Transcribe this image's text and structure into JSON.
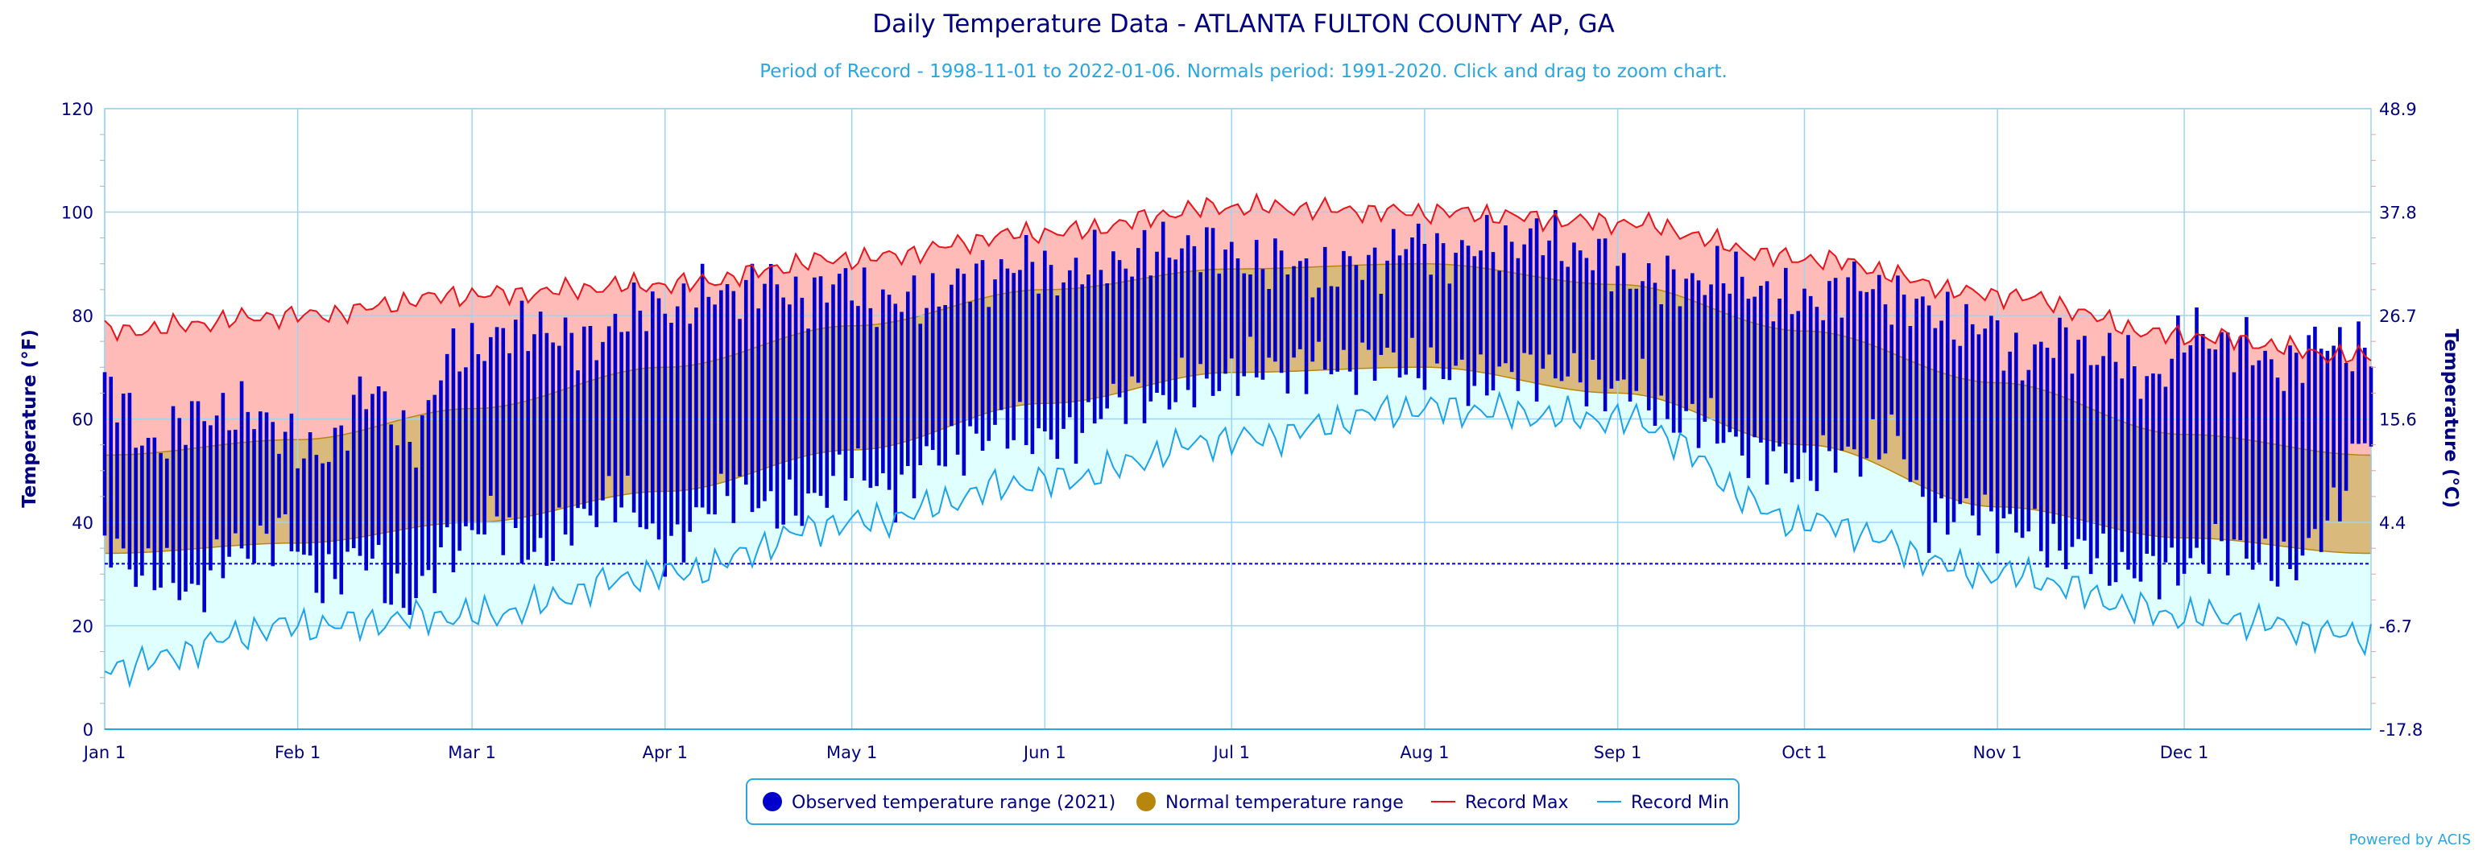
{
  "chart_data": {
    "type": "line",
    "title": "Daily Temperature Data - ATLANTA FULTON COUNTY AP, GA",
    "subtitle": "Period of Record - 1998-11-01 to 2022-01-06. Normals period: 1991-2020. Click and drag to zoom chart.",
    "ylabel": "Temperature (°F)",
    "ylabel_right": "Temperature (°C)",
    "ylim": [
      0,
      120
    ],
    "y_ticks": [
      0,
      20,
      40,
      60,
      80,
      100,
      120
    ],
    "y_ticks_right": [
      "-17.8",
      "-6.7",
      "4.4",
      "15.6",
      "26.7",
      "37.8",
      "48.9"
    ],
    "freezing_line_f": 32,
    "x_ticks": [
      {
        "label": "Jan 1",
        "day": 0
      },
      {
        "label": "Feb 1",
        "day": 31
      },
      {
        "label": "Mar 1",
        "day": 59
      },
      {
        "label": "Apr 1",
        "day": 90
      },
      {
        "label": "May 1",
        "day": 120
      },
      {
        "label": "Jun 1",
        "day": 151
      },
      {
        "label": "Jul 1",
        "day": 181
      },
      {
        "label": "Aug 1",
        "day": 212
      },
      {
        "label": "Sep 1",
        "day": 243
      },
      {
        "label": "Oct 1",
        "day": 273
      },
      {
        "label": "Nov 1",
        "day": 304
      },
      {
        "label": "Dec 1",
        "day": 334
      }
    ],
    "days_in_year": 365,
    "monthly_anchor_days": [
      0,
      31,
      59,
      90,
      120,
      151,
      181,
      212,
      243,
      273,
      304,
      334,
      364
    ],
    "normal_max_monthly": [
      53,
      56,
      62,
      70,
      78,
      85,
      89,
      90,
      86,
      77,
      67,
      57,
      53
    ],
    "normal_min_monthly": [
      34,
      36,
      40,
      46,
      54,
      63,
      69,
      70,
      65,
      55,
      43,
      37,
      34
    ],
    "record_max_monthly": [
      77,
      80,
      84,
      86,
      91,
      96,
      101,
      100,
      98,
      91,
      84,
      76,
      72
    ],
    "record_min_monthly": [
      12,
      20,
      22,
      30,
      40,
      48,
      56,
      62,
      60,
      40,
      30,
      22,
      18
    ],
    "observed_weekly": [
      {
        "day": 0,
        "hi": 67,
        "lo": 36
      },
      {
        "day": 7,
        "hi": 55,
        "lo": 30
      },
      {
        "day": 14,
        "hi": 60,
        "lo": 27
      },
      {
        "day": 21,
        "hi": 62,
        "lo": 34
      },
      {
        "day": 28,
        "hi": 58,
        "lo": 38
      },
      {
        "day": 35,
        "hi": 52,
        "lo": 29
      },
      {
        "day": 42,
        "hi": 66,
        "lo": 33
      },
      {
        "day": 49,
        "hi": 56,
        "lo": 24
      },
      {
        "day": 56,
        "hi": 72,
        "lo": 36
      },
      {
        "day": 63,
        "hi": 76,
        "lo": 40
      },
      {
        "day": 70,
        "hi": 78,
        "lo": 33
      },
      {
        "day": 77,
        "hi": 74,
        "lo": 42
      },
      {
        "day": 84,
        "hi": 80,
        "lo": 44
      },
      {
        "day": 91,
        "hi": 82,
        "lo": 34
      },
      {
        "day": 98,
        "hi": 84,
        "lo": 45
      },
      {
        "day": 105,
        "hi": 86,
        "lo": 44
      },
      {
        "day": 112,
        "hi": 84,
        "lo": 42
      },
      {
        "day": 119,
        "hi": 86,
        "lo": 50
      },
      {
        "day": 126,
        "hi": 82,
        "lo": 46
      },
      {
        "day": 133,
        "hi": 84,
        "lo": 52
      },
      {
        "day": 140,
        "hi": 87,
        "lo": 56
      },
      {
        "day": 147,
        "hi": 90,
        "lo": 58
      },
      {
        "day": 154,
        "hi": 88,
        "lo": 55
      },
      {
        "day": 161,
        "hi": 90,
        "lo": 63
      },
      {
        "day": 168,
        "hi": 92,
        "lo": 64
      },
      {
        "day": 175,
        "hi": 94,
        "lo": 66
      },
      {
        "day": 182,
        "hi": 91,
        "lo": 69
      },
      {
        "day": 189,
        "hi": 90,
        "lo": 70
      },
      {
        "day": 196,
        "hi": 88,
        "lo": 70
      },
      {
        "day": 203,
        "hi": 90,
        "lo": 71
      },
      {
        "day": 210,
        "hi": 94,
        "lo": 71
      },
      {
        "day": 217,
        "hi": 92,
        "lo": 68
      },
      {
        "day": 224,
        "hi": 94,
        "lo": 68
      },
      {
        "day": 231,
        "hi": 95,
        "lo": 70
      },
      {
        "day": 238,
        "hi": 92,
        "lo": 67
      },
      {
        "day": 245,
        "hi": 88,
        "lo": 66
      },
      {
        "day": 252,
        "hi": 86,
        "lo": 60
      },
      {
        "day": 259,
        "hi": 88,
        "lo": 58
      },
      {
        "day": 266,
        "hi": 85,
        "lo": 52
      },
      {
        "day": 273,
        "hi": 82,
        "lo": 50
      },
      {
        "day": 280,
        "hi": 86,
        "lo": 53
      },
      {
        "day": 287,
        "hi": 84,
        "lo": 56
      },
      {
        "day": 294,
        "hi": 80,
        "lo": 40
      },
      {
        "day": 301,
        "hi": 78,
        "lo": 42
      },
      {
        "day": 308,
        "hi": 72,
        "lo": 38
      },
      {
        "day": 315,
        "hi": 75,
        "lo": 35
      },
      {
        "day": 322,
        "hi": 72,
        "lo": 32
      },
      {
        "day": 329,
        "hi": 68,
        "lo": 30
      },
      {
        "day": 336,
        "hi": 77,
        "lo": 33
      },
      {
        "day": 343,
        "hi": 74,
        "lo": 35
      },
      {
        "day": 350,
        "hi": 70,
        "lo": 30
      },
      {
        "day": 357,
        "hi": 75,
        "lo": 40
      },
      {
        "day": 364,
        "hi": 73,
        "lo": 58
      }
    ],
    "series": [
      {
        "name": "Observed temperature range (2021)",
        "color": "#0000cc"
      },
      {
        "name": "Normal temperature range",
        "color": "#b8860b"
      },
      {
        "name": "Record Max",
        "color": "#e8141c"
      },
      {
        "name": "Record Min",
        "color": "#1aa3e8"
      }
    ],
    "colors": {
      "record_band": "#ffbbb8",
      "normal_band": "#d9b97c",
      "cold_band": "#e0ffff",
      "grid": "#9fd3ef",
      "axis_text": "#000080"
    },
    "legend_position": "bottom-center",
    "grid": true
  },
  "credit": "Powered by ACIS"
}
